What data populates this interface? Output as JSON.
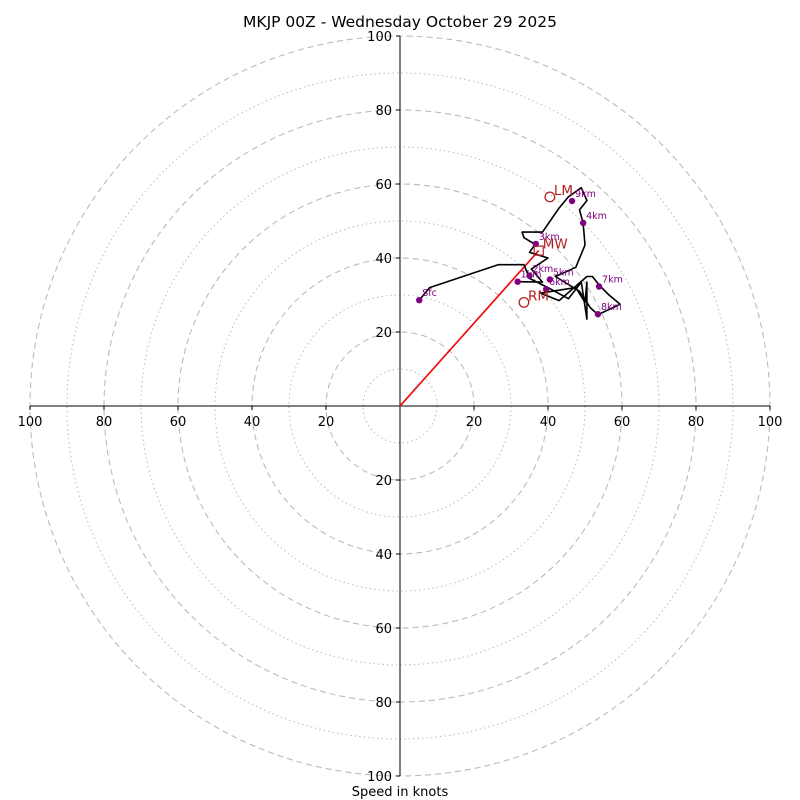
{
  "chart_data": {
    "type": "hodograph",
    "title": "MKJP 00Z - Wednesday October 29 2025",
    "xlabel": "Speed in knots",
    "units": "knots",
    "max_speed": 100,
    "major_rings": [
      20,
      40,
      60,
      80,
      100
    ],
    "minor_rings": [
      10,
      30,
      50,
      70,
      90
    ],
    "ticks": {
      "x_left": [
        "100",
        "80",
        "60",
        "40",
        "20"
      ],
      "x_right": [
        "20",
        "40",
        "60",
        "80",
        "100"
      ],
      "y_top": [
        "100",
        "80",
        "60",
        "40",
        "20"
      ],
      "y_bottom": [
        "20",
        "40",
        "60",
        "80",
        "100"
      ]
    },
    "trace": [
      [
        5.2,
        28.6
      ],
      [
        8,
        32
      ],
      [
        26.5,
        38.2
      ],
      [
        33.5,
        38.2
      ],
      [
        35,
        34.5
      ],
      [
        40,
        32
      ],
      [
        45.5,
        29
      ],
      [
        49,
        33.5
      ],
      [
        50.5,
        23.5
      ],
      [
        50.5,
        33.5
      ],
      [
        50,
        28
      ],
      [
        47.5,
        32
      ],
      [
        38,
        30.5
      ],
      [
        43,
        28.5
      ],
      [
        50.5,
        35
      ],
      [
        52,
        35
      ],
      [
        54,
        32.5
      ],
      [
        56.5,
        30
      ],
      [
        59.5,
        27.5
      ],
      [
        53.5,
        24.7
      ],
      [
        51.5,
        26.5
      ],
      [
        48.5,
        31
      ],
      [
        42,
        35
      ],
      [
        47.5,
        37.5
      ],
      [
        50,
        43.5
      ],
      [
        49.5,
        49.5
      ],
      [
        48.5,
        53
      ],
      [
        50.5,
        55.5
      ],
      [
        49,
        59
      ],
      [
        45.5,
        56.5
      ],
      [
        43,
        53.5
      ],
      [
        38.5,
        47
      ],
      [
        33,
        47
      ],
      [
        33.5,
        45.5
      ],
      [
        36.5,
        43.7
      ],
      [
        35,
        41.5
      ],
      [
        40,
        40
      ],
      [
        35.5,
        37
      ],
      [
        38.5,
        33.5
      ],
      [
        31.8,
        33.6
      ]
    ],
    "levels": [
      {
        "label": "Sfc",
        "u": 5.2,
        "v": 28.6
      },
      {
        "label": "1km",
        "u": 31.8,
        "v": 33.6
      },
      {
        "label": "2km",
        "u": 35,
        "v": 35.2
      },
      {
        "label": "3km",
        "u": 36.7,
        "v": 43.8
      },
      {
        "label": "4km",
        "u": 49.5,
        "v": 49.5
      },
      {
        "label": "5km",
        "u": 40.5,
        "v": 34.2
      },
      {
        "label": "6km",
        "u": 39.5,
        "v": 31.6
      },
      {
        "label": "7km",
        "u": 53.8,
        "v": 32.3
      },
      {
        "label": "8km",
        "u": 53.5,
        "v": 24.8
      },
      {
        "label": "9km",
        "u": 46.5,
        "v": 55.4
      }
    ],
    "markers": [
      {
        "label": "LM",
        "u": 40.5,
        "v": 56.5
      },
      {
        "label": "MW",
        "u": 37.5,
        "v": 42
      },
      {
        "label": "RM",
        "u": 33.5,
        "v": 28
      }
    ],
    "storm_motion_vector": {
      "from": [
        0,
        0
      ],
      "to": [
        37.5,
        42
      ]
    }
  },
  "colors": {
    "trace": "#000000",
    "levels": "#800080",
    "markers": "#b22222",
    "vector": "#ee1111",
    "grid": "#bbbbbb"
  }
}
